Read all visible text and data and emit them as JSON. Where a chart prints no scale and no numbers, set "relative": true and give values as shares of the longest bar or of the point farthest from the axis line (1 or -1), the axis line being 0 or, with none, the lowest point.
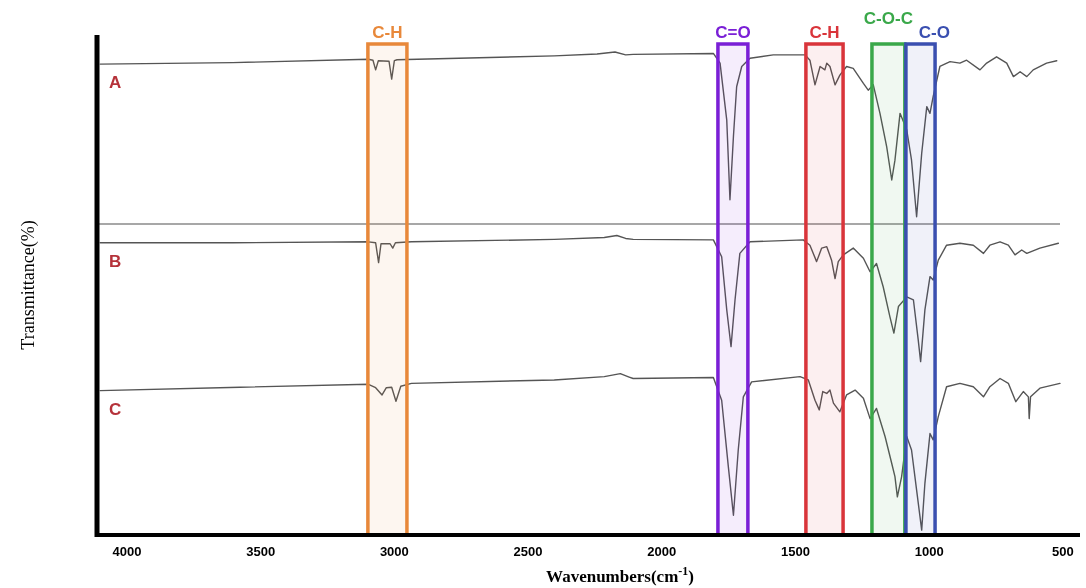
{
  "chart_data": {
    "type": "line",
    "relative": true,
    "xlabel": "Wavenumbers(cm$^{-1}$)",
    "ylabel": "Transmittance(%)",
    "xlim": [
      4112,
      436
    ],
    "xticks": [
      4000,
      3500,
      3000,
      2500,
      2000,
      1500,
      1000,
      500
    ],
    "grid": false,
    "marker": "none",
    "line_style": "solid",
    "series": [
      {
        "name": "A",
        "color": "#555555",
        "x": [
          4100,
          3604,
          3097,
          3080,
          3070,
          3060,
          3020,
          3010,
          3000,
          2990,
          2402,
          2242,
          2175,
          2135,
          2107,
          1807,
          1782,
          1757,
          1745,
          1732,
          1720,
          1701,
          1670,
          1583,
          1464,
          1446,
          1427,
          1408,
          1390,
          1383,
          1371,
          1352,
          1334,
          1309,
          1284,
          1246,
          1228,
          1209,
          1184,
          1159,
          1140,
          1128,
          1109,
          1084,
          1066,
          1047,
          1028,
          1009,
          997,
          985,
          960,
          922,
          885,
          860,
          810,
          785,
          748,
          710,
          685,
          660,
          635,
          611,
          561,
          523
        ],
        "values": [
          0.975,
          0.978,
          0.985,
          0.983,
          0.963,
          0.982,
          0.981,
          0.944,
          0.982,
          0.984,
          0.992,
          0.996,
          1.0,
          0.994,
          0.995,
          0.997,
          0.977,
          0.859,
          0.694,
          0.825,
          0.928,
          0.97,
          0.987,
          0.994,
          0.994,
          0.983,
          0.932,
          0.97,
          0.963,
          0.977,
          0.97,
          0.932,
          0.952,
          0.97,
          0.966,
          0.935,
          0.921,
          0.932,
          0.873,
          0.804,
          0.735,
          0.776,
          0.873,
          0.839,
          0.776,
          0.659,
          0.79,
          0.887,
          0.873,
          0.908,
          0.97,
          0.98,
          0.977,
          0.983,
          0.963,
          0.977,
          0.99,
          0.977,
          0.949,
          0.959,
          0.949,
          0.963,
          0.977,
          0.982
        ]
      },
      {
        "name": "B",
        "color": "#555555",
        "x": [
          4100,
          3604,
          3097,
          3070,
          3059,
          3050,
          3016,
          3006,
          2996,
          2936,
          2402,
          2215,
          2168,
          2135,
          2107,
          1807,
          1776,
          1757,
          1741,
          1726,
          1708,
          1670,
          1471,
          1446,
          1421,
          1402,
          1383,
          1365,
          1352,
          1340,
          1321,
          1284,
          1246,
          1221,
          1197,
          1172,
          1147,
          1132,
          1115,
          1084,
          1059,
          1041,
          1032,
          1016,
          997,
          985,
          966,
          935,
          885,
          835,
          797,
          773,
          735,
          704,
          679,
          654,
          635,
          586,
          517
        ],
        "values": [
          0.605,
          0.605,
          0.607,
          0.605,
          0.564,
          0.603,
          0.603,
          0.594,
          0.605,
          0.607,
          0.612,
          0.616,
          0.62,
          0.614,
          0.612,
          0.611,
          0.576,
          0.466,
          0.39,
          0.487,
          0.583,
          0.607,
          0.611,
          0.6,
          0.566,
          0.594,
          0.597,
          0.569,
          0.531,
          0.566,
          0.58,
          0.594,
          0.573,
          0.545,
          0.562,
          0.514,
          0.452,
          0.418,
          0.473,
          0.493,
          0.487,
          0.404,
          0.359,
          0.466,
          0.535,
          0.528,
          0.569,
          0.6,
          0.604,
          0.6,
          0.583,
          0.6,
          0.607,
          0.6,
          0.58,
          0.59,
          0.583,
          0.594,
          0.604
        ]
      },
      {
        "name": "C",
        "color": "#555555",
        "x": [
          4100,
          3577,
          3097,
          3070,
          3046,
          3030,
          3010,
          2994,
          2976,
          2936,
          2402,
          2215,
          2155,
          2122,
          2107,
          1807,
          1776,
          1751,
          1732,
          1714,
          1695,
          1664,
          1483,
          1452,
          1427,
          1411,
          1398,
          1383,
          1371,
          1358,
          1334,
          1309,
          1277,
          1246,
          1221,
          1197,
          1165,
          1140,
          1128,
          1119,
          1103,
          1084,
          1066,
          1047,
          1028,
          1016,
          997,
          985,
          966,
          935,
          885,
          835,
          797,
          773,
          735,
          704,
          676,
          648,
          629,
          626,
          621,
          586,
          511
        ],
        "values": [
          0.299,
          0.306,
          0.312,
          0.305,
          0.29,
          0.305,
          0.306,
          0.277,
          0.308,
          0.314,
          0.321,
          0.328,
          0.334,
          0.327,
          0.324,
          0.326,
          0.279,
          0.141,
          0.041,
          0.176,
          0.286,
          0.317,
          0.328,
          0.321,
          0.279,
          0.259,
          0.297,
          0.293,
          0.3,
          0.273,
          0.255,
          0.29,
          0.3,
          0.283,
          0.241,
          0.262,
          0.204,
          0.148,
          0.121,
          0.079,
          0.121,
          0.204,
          0.176,
          0.093,
          0.01,
          0.107,
          0.21,
          0.197,
          0.245,
          0.307,
          0.314,
          0.307,
          0.286,
          0.307,
          0.324,
          0.314,
          0.276,
          0.297,
          0.286,
          0.241,
          0.286,
          0.304,
          0.314
        ]
      }
    ],
    "ref_lines": [
      {
        "axis": "y",
        "value": 0.644,
        "color": "#8a8a8a"
      }
    ],
    "bands": [
      {
        "axis": "x",
        "from": 3099,
        "to": 2953,
        "label": "C-H",
        "color": "#e8883a"
      },
      {
        "axis": "x",
        "from": 1790,
        "to": 1678,
        "label": "C=O",
        "color": "#7a1fd6"
      },
      {
        "axis": "x",
        "from": 1461,
        "to": 1322,
        "label": "C-H",
        "color": "#d9343a"
      },
      {
        "axis": "x",
        "from": 1214,
        "to": 1091,
        "label": "C-O-C",
        "color": "#3aa84a"
      },
      {
        "axis": "x",
        "from": 1087,
        "to": 978,
        "label": "C-O",
        "color": "#3a4fb0"
      }
    ]
  }
}
